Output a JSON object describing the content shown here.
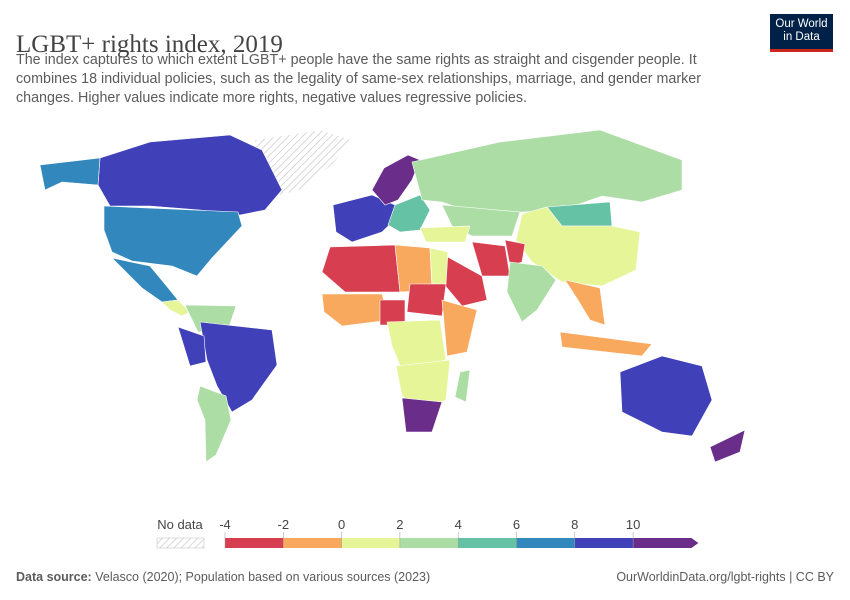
{
  "header": {
    "title": "LGBT+ rights index, 2019",
    "subtitle": "The index captures to which extent LGBT+ people have the same rights as straight and cisgender people. It combines 18 individual policies, such as the legality of same-sex relationships, marriage, and gender marker changes. Higher values indicate more rights, negative values regressive policies.",
    "logo": "Our World in Data"
  },
  "legend": {
    "no_data_label": "No data",
    "ticks": [
      "-4",
      "-2",
      "0",
      "2",
      "4",
      "6",
      "8",
      "10"
    ],
    "colors": [
      "#d73f50",
      "#f9a95e",
      "#e6f598",
      "#abdda4",
      "#66c2a5",
      "#3288bd",
      "#4040b8",
      "#6a2d8a"
    ]
  },
  "map_regions": [
    {
      "name": "Greenland",
      "value": null
    },
    {
      "name": "Canada",
      "value": 9
    },
    {
      "name": "Alaska",
      "value": 7
    },
    {
      "name": "United States",
      "value": 7
    },
    {
      "name": "Mexico",
      "value": 7
    },
    {
      "name": "Central America",
      "value": 1
    },
    {
      "name": "Colombia-Venezuela",
      "value": 3
    },
    {
      "name": "Brazil",
      "value": 9
    },
    {
      "name": "Peru",
      "value": 9
    },
    {
      "name": "Argentina",
      "value": 3
    },
    {
      "name": "Western Europe",
      "value": 9
    },
    {
      "name": "Scandinavia",
      "value": 11
    },
    {
      "name": "Eastern Europe",
      "value": 5
    },
    {
      "name": "Russia",
      "value": 3
    },
    {
      "name": "Kazakhstan",
      "value": 3
    },
    {
      "name": "Mongolia",
      "value": 5
    },
    {
      "name": "China",
      "value": 1
    },
    {
      "name": "Turkey",
      "value": 1
    },
    {
      "name": "Iran",
      "value": -3
    },
    {
      "name": "Saudi Arabia",
      "value": -3
    },
    {
      "name": "Afghanistan",
      "value": -3
    },
    {
      "name": "India",
      "value": 3
    },
    {
      "name": "Southeast Asia",
      "value": -1
    },
    {
      "name": "Indonesia",
      "value": -1
    },
    {
      "name": "Australia",
      "value": 9
    },
    {
      "name": "New Zealand",
      "value": 11
    },
    {
      "name": "Algeria",
      "value": -3
    },
    {
      "name": "Libya",
      "value": -1
    },
    {
      "name": "Egypt",
      "value": 1
    },
    {
      "name": "West Africa",
      "value": -1
    },
    {
      "name": "Nigeria",
      "value": -3
    },
    {
      "name": "Sudan",
      "value": -3
    },
    {
      "name": "Central Africa",
      "value": 1
    },
    {
      "name": "East Africa",
      "value": -1
    },
    {
      "name": "Southern Africa",
      "value": 1
    },
    {
      "name": "South Africa",
      "value": 11
    },
    {
      "name": "Madagascar",
      "value": 3
    }
  ],
  "footer": {
    "source_label": "Data source:",
    "source": "Velasco (2020); Population based on various sources (2023)",
    "license": "OurWorldinData.org/lgbt-rights | CC BY"
  }
}
